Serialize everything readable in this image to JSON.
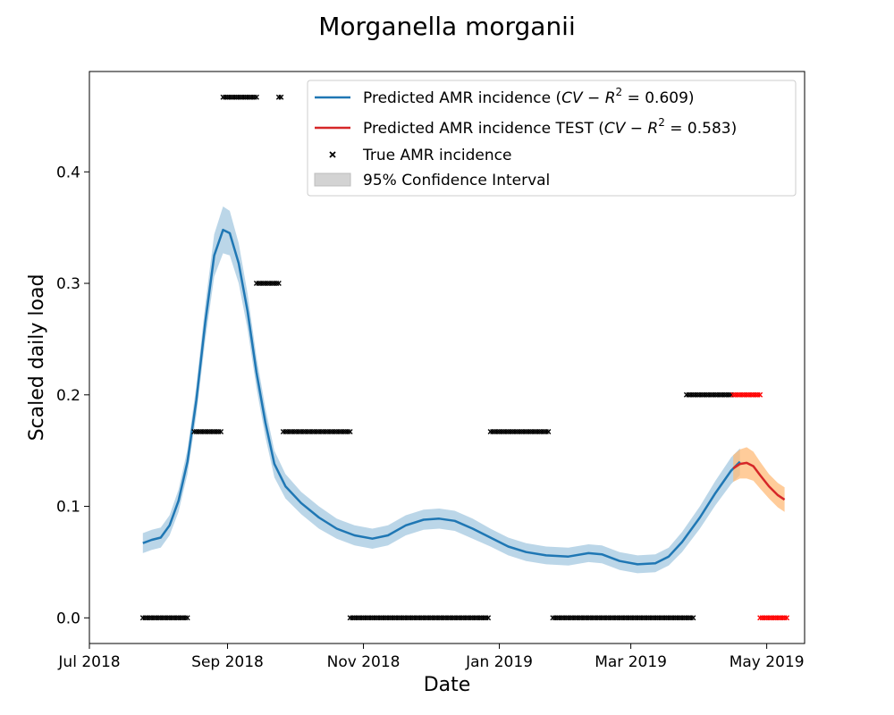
{
  "chart_data": {
    "type": "line",
    "title": "Morganella morganii",
    "xlabel": "Date",
    "ylabel": "Scaled daily load",
    "xlim": [
      "2018-07-01",
      "2019-05-18"
    ],
    "ylim": [
      -0.023,
      0.49
    ],
    "x_ticks": [
      {
        "date": "2018-07-01",
        "label": "Jul 2018"
      },
      {
        "date": "2018-09-01",
        "label": "Sep 2018"
      },
      {
        "date": "2018-11-01",
        "label": "Nov 2018"
      },
      {
        "date": "2019-01-01",
        "label": "Jan 2019"
      },
      {
        "date": "2019-03-01",
        "label": "Mar 2019"
      },
      {
        "date": "2019-05-01",
        "label": "May 2019"
      }
    ],
    "y_ticks": [
      {
        "value": 0.0,
        "label": "0.0"
      },
      {
        "value": 0.1,
        "label": "0.1"
      },
      {
        "value": 0.2,
        "label": "0.2"
      },
      {
        "value": 0.3,
        "label": "0.3"
      },
      {
        "value": 0.4,
        "label": "0.4"
      }
    ],
    "grid": false,
    "legend_position": "top-right",
    "legend": [
      {
        "kind": "line",
        "color": "#1f77b4",
        "text_pre": "Predicted AMR incidence (",
        "r2_label": "CV − R",
        "text_post": " = 0.609)"
      },
      {
        "kind": "line",
        "color": "#d62728",
        "text_pre": "Predicted AMR incidence TEST (",
        "r2_label": "CV − R",
        "text_post": " = 0.583)"
      },
      {
        "kind": "marker",
        "color": "#000000",
        "text": "True AMR incidence"
      },
      {
        "kind": "patch",
        "color": "#d3d3d3",
        "text": "95% Confidence Interval"
      }
    ],
    "series": [
      {
        "role": "predicted",
        "color": "#1f77b4",
        "ci_color": "#1f77b4",
        "points": [
          [
            "2018-07-25",
            0.067
          ],
          [
            "2018-07-29",
            0.07
          ],
          [
            "2018-08-02",
            0.072
          ],
          [
            "2018-08-06",
            0.083
          ],
          [
            "2018-08-10",
            0.105
          ],
          [
            "2018-08-14",
            0.14
          ],
          [
            "2018-08-18",
            0.195
          ],
          [
            "2018-08-22",
            0.265
          ],
          [
            "2018-08-26",
            0.325
          ],
          [
            "2018-08-30",
            0.348
          ],
          [
            "2018-09-02",
            0.345
          ],
          [
            "2018-09-06",
            0.318
          ],
          [
            "2018-09-10",
            0.275
          ],
          [
            "2018-09-14",
            0.22
          ],
          [
            "2018-09-18",
            0.175
          ],
          [
            "2018-09-22",
            0.138
          ],
          [
            "2018-09-27",
            0.118
          ],
          [
            "2018-10-04",
            0.103
          ],
          [
            "2018-10-12",
            0.09
          ],
          [
            "2018-10-20",
            0.08
          ],
          [
            "2018-10-28",
            0.074
          ],
          [
            "2018-11-05",
            0.071
          ],
          [
            "2018-11-12",
            0.074
          ],
          [
            "2018-11-20",
            0.083
          ],
          [
            "2018-11-28",
            0.088
          ],
          [
            "2018-12-05",
            0.089
          ],
          [
            "2018-12-12",
            0.087
          ],
          [
            "2018-12-20",
            0.08
          ],
          [
            "2018-12-28",
            0.072
          ],
          [
            "2019-01-05",
            0.064
          ],
          [
            "2019-01-13",
            0.059
          ],
          [
            "2019-01-22",
            0.056
          ],
          [
            "2019-02-01",
            0.055
          ],
          [
            "2019-02-10",
            0.058
          ],
          [
            "2019-02-16",
            0.057
          ],
          [
            "2019-02-24",
            0.051
          ],
          [
            "2019-03-04",
            0.048
          ],
          [
            "2019-03-12",
            0.049
          ],
          [
            "2019-03-18",
            0.055
          ],
          [
            "2019-03-24",
            0.068
          ],
          [
            "2019-04-01",
            0.09
          ],
          [
            "2019-04-08",
            0.112
          ],
          [
            "2019-04-15",
            0.132
          ],
          [
            "2019-04-19",
            0.14
          ]
        ],
        "ci_halfwidth": [
          0.009,
          0.009,
          0.009,
          0.009,
          0.01,
          0.011,
          0.013,
          0.016,
          0.019,
          0.021,
          0.02,
          0.018,
          0.016,
          0.014,
          0.013,
          0.012,
          0.011,
          0.01,
          0.01,
          0.009,
          0.009,
          0.009,
          0.009,
          0.009,
          0.009,
          0.009,
          0.009,
          0.009,
          0.008,
          0.008,
          0.008,
          0.008,
          0.008,
          0.008,
          0.008,
          0.008,
          0.008,
          0.008,
          0.008,
          0.009,
          0.01,
          0.011,
          0.012,
          0.012
        ]
      },
      {
        "role": "test",
        "color": "#d62728",
        "ci_color": "#ffbb78",
        "points": [
          [
            "2019-04-16",
            0.134
          ],
          [
            "2019-04-19",
            0.138
          ],
          [
            "2019-04-22",
            0.139
          ],
          [
            "2019-04-25",
            0.136
          ],
          [
            "2019-04-28",
            0.128
          ],
          [
            "2019-05-02",
            0.118
          ],
          [
            "2019-05-06",
            0.11
          ],
          [
            "2019-05-09",
            0.106
          ]
        ],
        "ci_halfwidth": [
          0.012,
          0.013,
          0.014,
          0.013,
          0.012,
          0.011,
          0.011,
          0.011
        ]
      }
    ],
    "true_incidence": [
      {
        "start": "2018-07-25",
        "end": "2018-08-14",
        "value": 0.0,
        "color": "#000000"
      },
      {
        "start": "2018-08-17",
        "end": "2018-08-29",
        "value": 0.167,
        "color": "#000000"
      },
      {
        "start": "2018-08-30",
        "end": "2018-09-14",
        "value": 0.467,
        "color": "#000000"
      },
      {
        "start": "2018-09-14",
        "end": "2018-09-24",
        "value": 0.3,
        "color": "#000000"
      },
      {
        "start": "2018-09-24",
        "end": "2018-09-25",
        "value": 0.467,
        "color": "#000000"
      },
      {
        "start": "2018-09-26",
        "end": "2018-10-26",
        "value": 0.167,
        "color": "#000000"
      },
      {
        "start": "2018-10-26",
        "end": "2018-12-27",
        "value": 0.0,
        "color": "#000000"
      },
      {
        "start": "2018-12-28",
        "end": "2019-01-23",
        "value": 0.167,
        "color": "#000000"
      },
      {
        "start": "2019-01-25",
        "end": "2019-03-29",
        "value": 0.0,
        "color": "#000000"
      },
      {
        "start": "2019-03-26",
        "end": "2019-04-15",
        "value": 0.2,
        "color": "#000000"
      },
      {
        "start": "2019-04-16",
        "end": "2019-04-28",
        "value": 0.2,
        "color": "#ff0000"
      },
      {
        "start": "2019-04-28",
        "end": "2019-05-10",
        "value": 0.0,
        "color": "#ff0000"
      }
    ]
  }
}
